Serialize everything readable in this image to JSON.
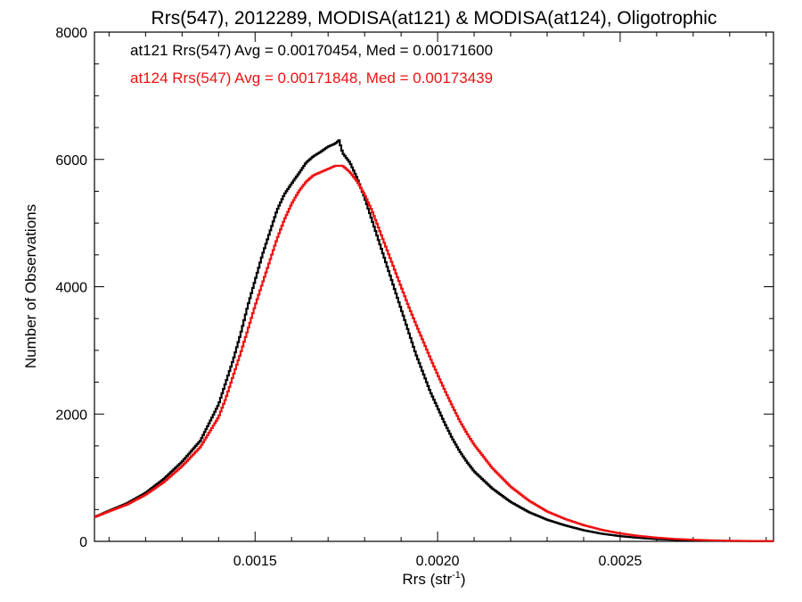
{
  "chart_data": {
    "type": "line",
    "title": "Rrs(547), 2012289, MODISA(at121) & MODISA(at124), Oligotrophic",
    "xlabel": "Rrs (str",
    "xlabel_sup": "-1",
    "xlabel_end": ")",
    "ylabel": "Number of Observations",
    "xlim": [
      0.00106,
      0.00292
    ],
    "ylim": [
      0,
      8000
    ],
    "x_ticks": [
      0.0015,
      0.002,
      0.0025
    ],
    "x_tick_labels": [
      "0.0015",
      "0.0020",
      "0.0025"
    ],
    "y_ticks": [
      0,
      2000,
      4000,
      6000,
      8000
    ],
    "y_tick_labels": [
      "0",
      "2000",
      "4000",
      "6000",
      "8000"
    ],
    "grid": false,
    "legend_placement": "top-left",
    "series": [
      {
        "name": "at121",
        "legend_text": "at121 Rrs(547) Avg = 0.00170454, Med = 0.00171600",
        "color": "#000000",
        "x": [
          0.00106,
          0.0011,
          0.00115,
          0.0012,
          0.00125,
          0.0013,
          0.00135,
          0.0014,
          0.00142,
          0.00144,
          0.00146,
          0.00148,
          0.0015,
          0.00152,
          0.00154,
          0.00156,
          0.00158,
          0.0016,
          0.00162,
          0.00164,
          0.00166,
          0.00168,
          0.0017,
          0.00172,
          0.00173,
          0.00174,
          0.00176,
          0.00178,
          0.0018,
          0.00182,
          0.00184,
          0.00186,
          0.00188,
          0.0019,
          0.00192,
          0.00194,
          0.00196,
          0.00198,
          0.002,
          0.00202,
          0.00204,
          0.00206,
          0.00208,
          0.0021,
          0.00215,
          0.0022,
          0.00225,
          0.0023,
          0.00235,
          0.0024,
          0.00245,
          0.0025,
          0.00255,
          0.0026,
          0.00265,
          0.0027,
          0.00275,
          0.0028,
          0.00285,
          0.00292
        ],
        "y": [
          380,
          480,
          600,
          760,
          980,
          1250,
          1580,
          2150,
          2500,
          2850,
          3250,
          3700,
          4100,
          4500,
          4850,
          5200,
          5450,
          5620,
          5780,
          5950,
          6050,
          6120,
          6200,
          6250,
          6300,
          6100,
          5950,
          5700,
          5400,
          5050,
          4700,
          4350,
          4000,
          3650,
          3300,
          2950,
          2650,
          2350,
          2100,
          1850,
          1620,
          1420,
          1250,
          1100,
          830,
          620,
          460,
          340,
          250,
          175,
          120,
          82,
          55,
          36,
          24,
          15,
          10,
          6,
          4,
          2
        ]
      },
      {
        "name": "at124",
        "legend_text": "at124 Rrs(547) Avg = 0.00171848, Med = 0.00173439",
        "color": "#ee1111",
        "x": [
          0.00106,
          0.0011,
          0.00115,
          0.0012,
          0.00125,
          0.0013,
          0.00135,
          0.0014,
          0.00142,
          0.00144,
          0.00146,
          0.00148,
          0.0015,
          0.00152,
          0.00154,
          0.00156,
          0.00158,
          0.0016,
          0.00162,
          0.00164,
          0.00166,
          0.00168,
          0.0017,
          0.00172,
          0.00174,
          0.00176,
          0.00178,
          0.0018,
          0.00182,
          0.00184,
          0.00186,
          0.00188,
          0.0019,
          0.00192,
          0.00194,
          0.00196,
          0.00198,
          0.002,
          0.00202,
          0.00204,
          0.00206,
          0.00208,
          0.0021,
          0.00215,
          0.0022,
          0.00225,
          0.0023,
          0.00235,
          0.0024,
          0.00245,
          0.0025,
          0.00255,
          0.0026,
          0.00265,
          0.0027,
          0.00275,
          0.0028,
          0.00285,
          0.00292
        ],
        "y": [
          380,
          470,
          580,
          730,
          930,
          1180,
          1480,
          1950,
          2250,
          2600,
          2950,
          3320,
          3700,
          4050,
          4400,
          4750,
          5050,
          5300,
          5500,
          5650,
          5750,
          5800,
          5850,
          5900,
          5900,
          5800,
          5650,
          5450,
          5200,
          4900,
          4600,
          4300,
          4000,
          3700,
          3420,
          3150,
          2880,
          2620,
          2370,
          2130,
          1900,
          1700,
          1520,
          1150,
          860,
          640,
          470,
          350,
          255,
          180,
          125,
          86,
          58,
          38,
          25,
          16,
          10,
          6,
          3
        ]
      }
    ]
  }
}
